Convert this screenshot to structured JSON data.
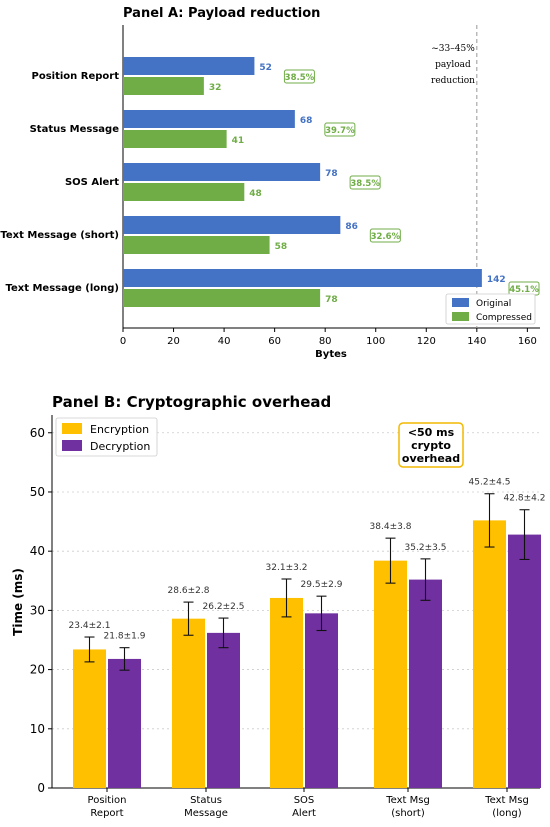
{
  "colors": {
    "original": "#4472c4",
    "compressed": "#70ad47",
    "encryption": "#ffc000",
    "decryption": "#7030a0",
    "annotation": "#f2b800"
  },
  "chart_data": [
    {
      "type": "bar",
      "orientation": "horizontal",
      "title": "Panel A: Payload reduction",
      "xlabel": "Bytes",
      "ylabel": "",
      "xlim": [
        0,
        165
      ],
      "xticks": [
        0,
        20,
        40,
        60,
        80,
        100,
        120,
        140,
        160
      ],
      "categories": [
        "Position Report",
        "Status Message",
        "SOS Alert",
        "Text Message (short)",
        "Text Message (long)"
      ],
      "series": [
        {
          "name": "Original",
          "values": [
            52,
            68,
            78,
            86,
            142
          ]
        },
        {
          "name": "Compressed",
          "values": [
            32,
            41,
            48,
            58,
            78
          ]
        }
      ],
      "reductions": [
        "38.5%",
        "39.7%",
        "38.5%",
        "32.6%",
        "45.1%"
      ],
      "reference_line": {
        "x": 140,
        "style": "dashed"
      },
      "annotation": [
        "~33–45%",
        "payload",
        "reduction"
      ],
      "legend_position": "bottom-right"
    },
    {
      "type": "bar",
      "orientation": "vertical",
      "title": "Panel B: Cryptographic overhead",
      "xlabel": "",
      "ylabel": "Time (ms)",
      "ylim": [
        0,
        63
      ],
      "yticks": [
        0,
        10,
        20,
        30,
        40,
        50,
        60
      ],
      "grid": "horizontal dotted",
      "categories": [
        [
          "Position",
          "Report"
        ],
        [
          "Status",
          "Message"
        ],
        [
          "SOS",
          "Alert"
        ],
        [
          "Text Msg",
          "(short)"
        ],
        [
          "Text Msg",
          "(long)"
        ]
      ],
      "series": [
        {
          "name": "Encryption",
          "values": [
            23.4,
            28.6,
            32.1,
            38.4,
            45.2
          ],
          "errors": [
            2.1,
            2.8,
            3.2,
            3.8,
            4.5
          ]
        },
        {
          "name": "Decryption",
          "values": [
            21.8,
            26.2,
            29.5,
            35.2,
            42.8
          ],
          "errors": [
            1.9,
            2.5,
            2.9,
            3.5,
            4.2
          ]
        }
      ],
      "value_labels": {
        "encryption": [
          "23.4±2.1",
          "28.6±2.8",
          "32.1±3.2",
          "38.4±3.8",
          "45.2±4.5"
        ],
        "decryption": [
          "21.8±1.9",
          "26.2±2.5",
          "29.5±2.9",
          "35.2±3.5",
          "42.8±4.2"
        ]
      },
      "annotation": [
        "<50 ms",
        "crypto",
        "overhead"
      ],
      "legend_position": "top-left"
    }
  ]
}
